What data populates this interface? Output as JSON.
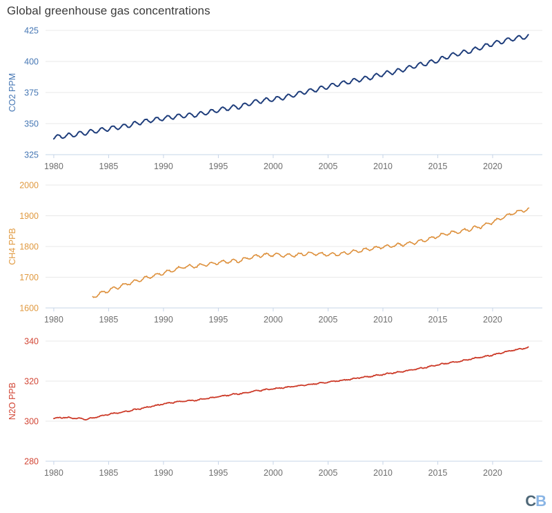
{
  "title": "Global greenhouse gas concentrations",
  "logo": {
    "c": "C",
    "b": "B"
  },
  "grid_color": "#e8e8e8",
  "axis_color": "#c6d4e7",
  "x_tick_color": "#6e6e6e",
  "chart_data": [
    {
      "type": "line",
      "name": "CO2",
      "ylabel": "CO2 PPM",
      "color": "#1e3d7b",
      "tick_color": "#4677b4",
      "ylim": [
        325,
        425
      ],
      "yticks": [
        325,
        350,
        375,
        400,
        425
      ],
      "xlim": [
        1979.25,
        2024.53
      ],
      "xticks": [
        1980,
        1985,
        1990,
        1995,
        2000,
        2005,
        2010,
        2015,
        2020
      ],
      "x_start": 1980.0,
      "x_end": 2023.3,
      "seasonal_amplitude": 1.7,
      "noise": 0.25,
      "stroke_width": 2,
      "anchor_years": [
        1980,
        1981,
        1982,
        1983,
        1984,
        1985,
        1986,
        1987,
        1988,
        1989,
        1990,
        1991,
        1992,
        1993,
        1994,
        1995,
        1996,
        1997,
        1998,
        1999,
        2000,
        2001,
        2002,
        2003,
        2004,
        2005,
        2006,
        2007,
        2008,
        2009,
        2010,
        2011,
        2012,
        2013,
        2014,
        2015,
        2016,
        2017,
        2018,
        2019,
        2020,
        2021,
        2022,
        2023
      ],
      "anchor_values": [
        338.9,
        340.1,
        341.2,
        342.8,
        344.4,
        345.9,
        347.2,
        348.9,
        351.2,
        352.9,
        354.2,
        355.6,
        356.4,
        357.1,
        358.8,
        360.8,
        362.6,
        363.7,
        366.7,
        368.4,
        369.5,
        371.1,
        373.2,
        375.8,
        377.5,
        379.8,
        381.9,
        383.8,
        385.6,
        387.4,
        389.9,
        391.6,
        393.9,
        396.5,
        398.6,
        400.8,
        404.2,
        406.6,
        408.5,
        411.4,
        414.2,
        416.4,
        418.6,
        419.8
      ]
    },
    {
      "type": "line",
      "name": "CH4",
      "ylabel": "CH4 PPB",
      "color": "#dd8f3a",
      "tick_color": "#e0993f",
      "ylim": [
        1600,
        2000
      ],
      "yticks": [
        1600,
        1700,
        1800,
        1900,
        2000
      ],
      "xlim": [
        1979.25,
        2024.53
      ],
      "xticks": [
        1980,
        1985,
        1990,
        1995,
        2000,
        2005,
        2010,
        2015,
        2020
      ],
      "x_start": 1983.55,
      "x_end": 2023.3,
      "seasonal_amplitude": 5,
      "noise": 2,
      "stroke_width": 1.6,
      "anchor_years": [
        1983.5,
        1984,
        1985,
        1986,
        1987,
        1988,
        1989,
        1990,
        1991,
        1992,
        1993,
        1994,
        1995,
        1996,
        1997,
        1998,
        1999,
        2000,
        2001,
        2002,
        2003,
        2004,
        2005,
        2006,
        2007,
        2008,
        2009,
        2010,
        2011,
        2012,
        2013,
        2014,
        2015,
        2016,
        2017,
        2018,
        2019,
        2020,
        2021,
        2022,
        2023
      ],
      "anchor_values": [
        1633,
        1644,
        1657,
        1670,
        1682,
        1693,
        1704,
        1714,
        1724,
        1735,
        1736,
        1742,
        1748,
        1751,
        1754,
        1765,
        1772,
        1773,
        1771,
        1772,
        1777,
        1777,
        1774,
        1775,
        1781,
        1787,
        1793,
        1799,
        1803,
        1808,
        1813,
        1822,
        1834,
        1843,
        1849,
        1857,
        1866,
        1879,
        1895,
        1911,
        1919
      ]
    },
    {
      "type": "line",
      "name": "N2O",
      "ylabel": "N2O PPB",
      "color": "#cc3a28",
      "tick_color": "#d24534",
      "ylim": [
        280,
        340
      ],
      "yticks": [
        280,
        300,
        320,
        340
      ],
      "xlim": [
        1979.25,
        2024.53
      ],
      "xticks": [
        1980,
        1985,
        1990,
        1995,
        2000,
        2005,
        2010,
        2015,
        2020
      ],
      "x_start": 1980.0,
      "x_end": 2023.3,
      "seasonal_amplitude": 0.22,
      "noise": 0.2,
      "stroke_width": 1.8,
      "anchor_years": [
        1980,
        1981,
        1982,
        1983,
        1984,
        1985,
        1986,
        1987,
        1988,
        1989,
        1990,
        1991,
        1992,
        1993,
        1994,
        1995,
        1996,
        1997,
        1998,
        1999,
        2000,
        2001,
        2002,
        2003,
        2004,
        2005,
        2006,
        2007,
        2008,
        2009,
        2010,
        2011,
        2012,
        2013,
        2014,
        2015,
        2016,
        2017,
        2018,
        2019,
        2020,
        2021,
        2022,
        2023
      ],
      "anchor_values": [
        301.5,
        301.9,
        301.4,
        301.0,
        302.2,
        303.5,
        304.3,
        305.3,
        306.4,
        307.5,
        308.6,
        309.5,
        310.0,
        310.5,
        311.3,
        312.2,
        313.1,
        313.8,
        314.7,
        315.5,
        316.1,
        316.8,
        317.4,
        318.1,
        318.8,
        319.5,
        320.2,
        320.9,
        321.8,
        322.5,
        323.3,
        324.2,
        325.0,
        325.9,
        327.0,
        328.2,
        329.0,
        329.9,
        331.1,
        332.0,
        333.0,
        334.4,
        335.6,
        336.5
      ]
    }
  ]
}
